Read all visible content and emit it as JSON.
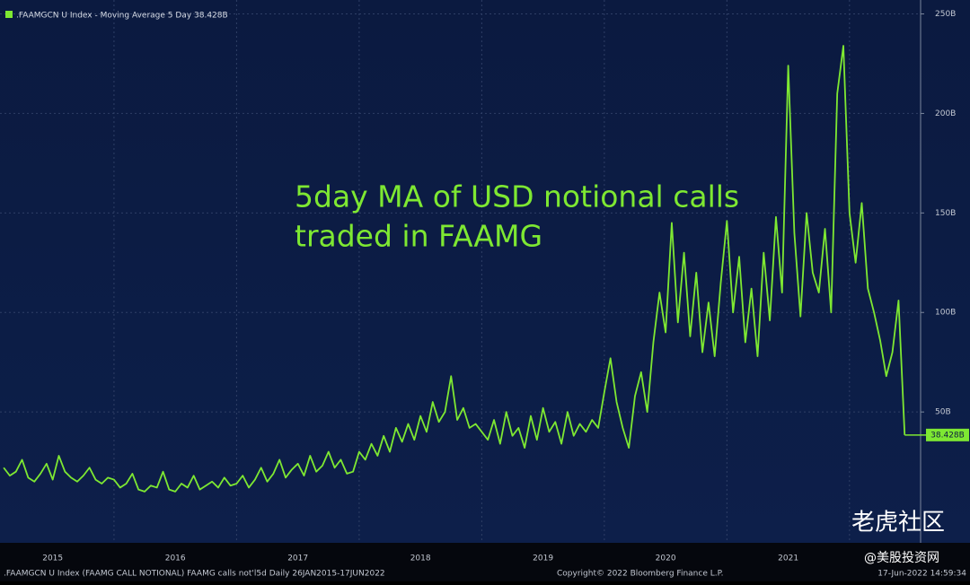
{
  "chart_data": {
    "type": "line",
    "legend": ".FAAMGCN U Index - Moving Average 5 Day 38.428B",
    "annotation": [
      "5day MA of USD notional calls",
      "traded in FAAMG"
    ],
    "footer_left": ".FAAMGCN U Index (FAAMG CALL NOTIONAL) FAAMG calls not'l5d  Daily 26JAN2015-17JUN2022",
    "footer_center": "Copyright© 2022 Bloomberg Finance L.P.",
    "footer_right": "17-Jun-2022 14:59:34",
    "watermark": [
      "老虎社区",
      "@美股投资网"
    ],
    "xlim": [
      2015.07,
      2022.58
    ],
    "ylim": [
      -13.5,
      257
    ],
    "xticks": [
      {
        "value": 2015.5,
        "label": "2015"
      },
      {
        "value": 2016.5,
        "label": "2016"
      },
      {
        "value": 2017.5,
        "label": "2017"
      },
      {
        "value": 2018.5,
        "label": "2018"
      },
      {
        "value": 2019.5,
        "label": "2019"
      },
      {
        "value": 2020.5,
        "label": "2020"
      },
      {
        "value": 2021.5,
        "label": "2021"
      }
    ],
    "x_gridlines": [
      2016,
      2017,
      2018,
      2019,
      2020,
      2021,
      2022
    ],
    "yticks": [
      {
        "value": 50,
        "label": "50B"
      },
      {
        "value": 100,
        "label": "100B"
      },
      {
        "value": 150,
        "label": "150B"
      },
      {
        "value": 200,
        "label": "200B"
      },
      {
        "value": 250,
        "label": "250B"
      }
    ],
    "grid": true,
    "last_value": {
      "value": 38.428,
      "label": "38.428B"
    },
    "series": [
      {
        "name": ".FAAMGCN U Index - Moving Average 5 Day",
        "color": "#7ee832",
        "x": [
          2015.1,
          2015.15,
          2015.2,
          2015.25,
          2015.3,
          2015.35,
          2015.4,
          2015.45,
          2015.5,
          2015.55,
          2015.6,
          2015.65,
          2015.7,
          2015.75,
          2015.8,
          2015.85,
          2015.9,
          2015.95,
          2016,
          2016.05,
          2016.1,
          2016.15,
          2016.2,
          2016.25,
          2016.3,
          2016.35,
          2016.4,
          2016.45,
          2016.5,
          2016.55,
          2016.6,
          2016.65,
          2016.7,
          2016.75,
          2016.8,
          2016.85,
          2016.9,
          2016.95,
          2017,
          2017.05,
          2017.1,
          2017.15,
          2017.2,
          2017.25,
          2017.3,
          2017.35,
          2017.4,
          2017.45,
          2017.5,
          2017.55,
          2017.6,
          2017.65,
          2017.7,
          2017.75,
          2017.8,
          2017.85,
          2017.9,
          2017.95,
          2018,
          2018.05,
          2018.1,
          2018.15,
          2018.2,
          2018.25,
          2018.3,
          2018.35,
          2018.4,
          2018.45,
          2018.5,
          2018.55,
          2018.6,
          2018.65,
          2018.7,
          2018.75,
          2018.8,
          2018.85,
          2018.9,
          2018.95,
          2019,
          2019.05,
          2019.1,
          2019.15,
          2019.2,
          2019.25,
          2019.3,
          2019.35,
          2019.4,
          2019.45,
          2019.5,
          2019.55,
          2019.6,
          2019.65,
          2019.7,
          2019.75,
          2019.8,
          2019.85,
          2019.9,
          2019.95,
          2020,
          2020.05,
          2020.1,
          2020.15,
          2020.2,
          2020.25,
          2020.3,
          2020.35,
          2020.4,
          2020.45,
          2020.5,
          2020.55,
          2020.6,
          2020.65,
          2020.7,
          2020.75,
          2020.8,
          2020.85,
          2020.9,
          2020.95,
          2021,
          2021.05,
          2021.1,
          2021.15,
          2021.2,
          2021.25,
          2021.3,
          2021.35,
          2021.4,
          2021.45,
          2021.5,
          2021.55,
          2021.6,
          2021.65,
          2021.7,
          2021.75,
          2021.8,
          2021.85,
          2021.9,
          2021.95,
          2022,
          2022.05,
          2022.1,
          2022.15,
          2022.2,
          2022.25,
          2022.3,
          2022.35,
          2022.4,
          2022.45
        ],
        "values": [
          22,
          18,
          20,
          26,
          17,
          15,
          19,
          24,
          16,
          28,
          20,
          17,
          15,
          18,
          22,
          16,
          14,
          17,
          16,
          12,
          14,
          19,
          11,
          10,
          13,
          12,
          20,
          11,
          10,
          14,
          12,
          18,
          11,
          13,
          15,
          12,
          17,
          13,
          14,
          18,
          12,
          16,
          22,
          15,
          19,
          26,
          17,
          21,
          24,
          18,
          28,
          20,
          23,
          30,
          22,
          26,
          19,
          20,
          30,
          26,
          34,
          28,
          38,
          30,
          42,
          35,
          44,
          36,
          48,
          40,
          55,
          45,
          50,
          68,
          46,
          52,
          42,
          44,
          40,
          36,
          46,
          34,
          50,
          38,
          42,
          32,
          48,
          36,
          52,
          40,
          45,
          34,
          50,
          38,
          44,
          40,
          46,
          42,
          60,
          77,
          55,
          42,
          32,
          58,
          70,
          50,
          85,
          110,
          90,
          145,
          95,
          130,
          88,
          120,
          80,
          105,
          78,
          115,
          146,
          100,
          128,
          85,
          112,
          78,
          130,
          96,
          148,
          110,
          224,
          140,
          98,
          150,
          120,
          110,
          142,
          100,
          210,
          234,
          150,
          125,
          155,
          112,
          100,
          86,
          68,
          80,
          106,
          38.428
        ]
      }
    ]
  }
}
